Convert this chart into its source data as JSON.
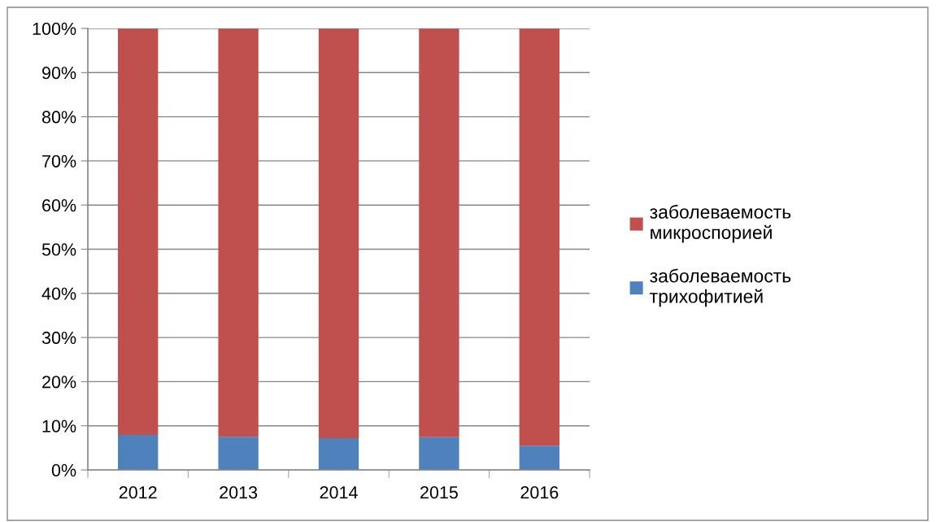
{
  "chart_data": {
    "type": "bar",
    "stacked": true,
    "categories": [
      "2012",
      "2013",
      "2014",
      "2015",
      "2016"
    ],
    "series": [
      {
        "name": "заболеваемость\nтрихофитией",
        "color": "#4f81bd",
        "values": [
          7.9,
          7.5,
          7.2,
          7.4,
          5.5
        ]
      },
      {
        "name": "заболеваемость\nмикроспорией",
        "color": "#c0504d",
        "values": [
          92.1,
          92.5,
          92.8,
          92.6,
          94.5
        ]
      }
    ],
    "ylim": [
      0,
      100
    ],
    "yticks": [
      {
        "value": 0,
        "label": "0%"
      },
      {
        "value": 10,
        "label": "10%"
      },
      {
        "value": 20,
        "label": "20%"
      },
      {
        "value": 30,
        "label": "30%"
      },
      {
        "value": 40,
        "label": "40%"
      },
      {
        "value": 50,
        "label": "50%"
      },
      {
        "value": 60,
        "label": "60%"
      },
      {
        "value": 70,
        "label": "70%"
      },
      {
        "value": 80,
        "label": "80%"
      },
      {
        "value": 90,
        "label": "90%"
      },
      {
        "value": 100,
        "label": "100%"
      }
    ],
    "grid": "y",
    "legend": "right"
  }
}
